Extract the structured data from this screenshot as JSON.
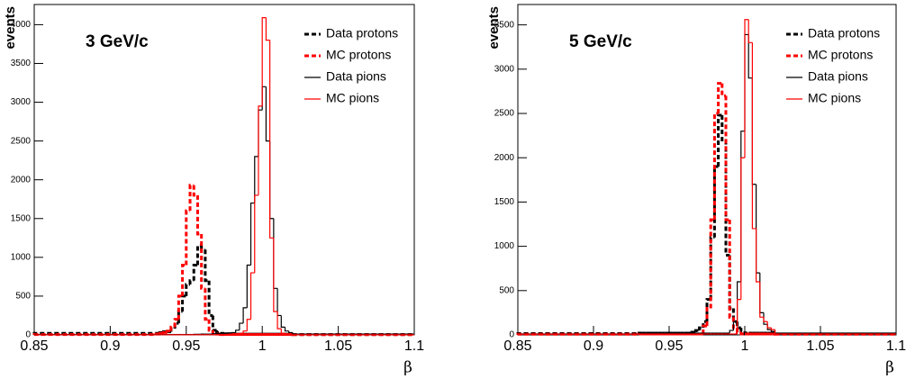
{
  "chart_data": [
    {
      "type": "histogram",
      "annotation": "3 GeV/c",
      "ylabel": "events",
      "xlabel": "β",
      "bins": [
        0.85,
        0.93,
        0.9325,
        0.935,
        0.9375,
        0.94,
        0.9425,
        0.945,
        0.9475,
        0.95,
        0.9525,
        0.955,
        0.9575,
        0.96,
        0.9625,
        0.965,
        0.9675,
        0.97,
        0.9725,
        0.975,
        0.9775,
        0.98,
        0.9825,
        0.985,
        0.9875,
        0.99,
        0.9925,
        0.995,
        0.9975,
        1,
        1.0025,
        1.005,
        1.0075,
        1.01,
        1.0125,
        1.015,
        1.0175,
        1.02,
        1.1
      ],
      "xlim": [
        0.85,
        1.1
      ],
      "xticks": [
        0.85,
        0.9,
        0.95,
        1,
        1.05,
        1.1
      ],
      "ylim": [
        0,
        4260
      ],
      "yticks": [
        0,
        500,
        1000,
        1500,
        2000,
        2500,
        3000,
        3500,
        4000
      ],
      "legend": "upper right",
      "series": [
        {
          "name": "Data protons",
          "color": "#000000",
          "dashed": true,
          "values": [
            20,
            20,
            30,
            40,
            40,
            80,
            150,
            300,
            500,
            650,
            700,
            900,
            1150,
            1100,
            700,
            250,
            60,
            30,
            20,
            15,
            15,
            10,
            10,
            10,
            10,
            10,
            10,
            10,
            10,
            10,
            10,
            10,
            10,
            10,
            10,
            10,
            10,
            5
          ]
        },
        {
          "name": "MC protons",
          "color": "#ff0000",
          "dashed": true,
          "values": [
            5,
            10,
            20,
            30,
            50,
            100,
            200,
            500,
            900,
            1600,
            1930,
            1800,
            1300,
            600,
            200,
            60,
            20,
            10,
            5,
            5,
            5,
            5,
            5,
            5,
            5,
            5,
            5,
            5,
            5,
            5,
            5,
            5,
            5,
            5,
            5,
            5,
            5,
            3
          ]
        },
        {
          "name": "Data pions",
          "color": "#000000",
          "dashed": false,
          "values": [
            5,
            5,
            5,
            5,
            5,
            5,
            5,
            5,
            5,
            5,
            5,
            8,
            8,
            10,
            10,
            10,
            15,
            15,
            20,
            20,
            25,
            30,
            60,
            150,
            350,
            900,
            1700,
            2300,
            2900,
            3200,
            2500,
            1500,
            600,
            250,
            100,
            50,
            30,
            10
          ]
        },
        {
          "name": "MC pions",
          "color": "#ff0000",
          "dashed": false,
          "values": [
            2,
            2,
            2,
            2,
            2,
            2,
            2,
            2,
            2,
            2,
            2,
            2,
            2,
            2,
            2,
            2,
            2,
            2,
            2,
            2,
            2,
            5,
            10,
            20,
            50,
            200,
            800,
            1800,
            2950,
            4090,
            3800,
            1250,
            300,
            80,
            20,
            10,
            5,
            2
          ]
        }
      ]
    },
    {
      "type": "histogram",
      "annotation": "5 GeV/c",
      "ylabel": "events",
      "xlabel": "β",
      "bins": [
        0.85,
        0.93,
        0.9325,
        0.935,
        0.9375,
        0.94,
        0.9425,
        0.945,
        0.9475,
        0.95,
        0.9525,
        0.955,
        0.9575,
        0.96,
        0.9625,
        0.965,
        0.9675,
        0.97,
        0.9725,
        0.975,
        0.9775,
        0.98,
        0.9825,
        0.985,
        0.9875,
        0.99,
        0.9925,
        0.995,
        0.9975,
        1,
        1.0025,
        1.005,
        1.0075,
        1.01,
        1.0125,
        1.015,
        1.0175,
        1.02,
        1.1
      ],
      "xlim": [
        0.85,
        1.1
      ],
      "xticks": [
        0.85,
        0.9,
        0.95,
        1,
        1.05,
        1.1
      ],
      "ylim": [
        0,
        3730
      ],
      "yticks": [
        0,
        500,
        1000,
        1500,
        2000,
        2500,
        3000,
        3500
      ],
      "legend": "upper right",
      "series": [
        {
          "name": "Data protons",
          "color": "#000000",
          "dashed": true,
          "values": [
            15,
            20,
            20,
            20,
            20,
            20,
            20,
            20,
            20,
            20,
            20,
            20,
            20,
            20,
            20,
            30,
            50,
            80,
            150,
            400,
            1100,
            1900,
            2480,
            2200,
            900,
            300,
            150,
            80,
            40,
            20,
            20,
            20,
            20,
            20,
            20,
            20,
            20,
            10
          ]
        },
        {
          "name": "MC protons",
          "color": "#ff0000",
          "dashed": true,
          "values": [
            8,
            10,
            10,
            10,
            10,
            10,
            10,
            10,
            10,
            10,
            10,
            10,
            10,
            10,
            10,
            10,
            10,
            10,
            100,
            300,
            1300,
            2500,
            2840,
            2700,
            1300,
            200,
            80,
            30,
            10,
            10,
            10,
            10,
            10,
            10,
            10,
            10,
            10,
            8
          ]
        },
        {
          "name": "Data pions",
          "color": "#000000",
          "dashed": false,
          "values": [
            10,
            20,
            20,
            20,
            20,
            20,
            20,
            20,
            20,
            20,
            20,
            20,
            20,
            20,
            20,
            20,
            20,
            20,
            20,
            20,
            20,
            20,
            20,
            20,
            20,
            50,
            150,
            600,
            2300,
            3390,
            2900,
            1700,
            700,
            250,
            120,
            60,
            40,
            20
          ]
        },
        {
          "name": "MC pions",
          "color": "#ff0000",
          "dashed": false,
          "values": [
            8,
            10,
            10,
            10,
            10,
            10,
            10,
            10,
            10,
            10,
            10,
            10,
            10,
            10,
            10,
            10,
            10,
            10,
            10,
            10,
            10,
            10,
            10,
            10,
            10,
            10,
            10,
            400,
            2000,
            3560,
            3300,
            1200,
            600,
            200,
            150,
            80,
            60,
            10
          ]
        }
      ]
    }
  ]
}
